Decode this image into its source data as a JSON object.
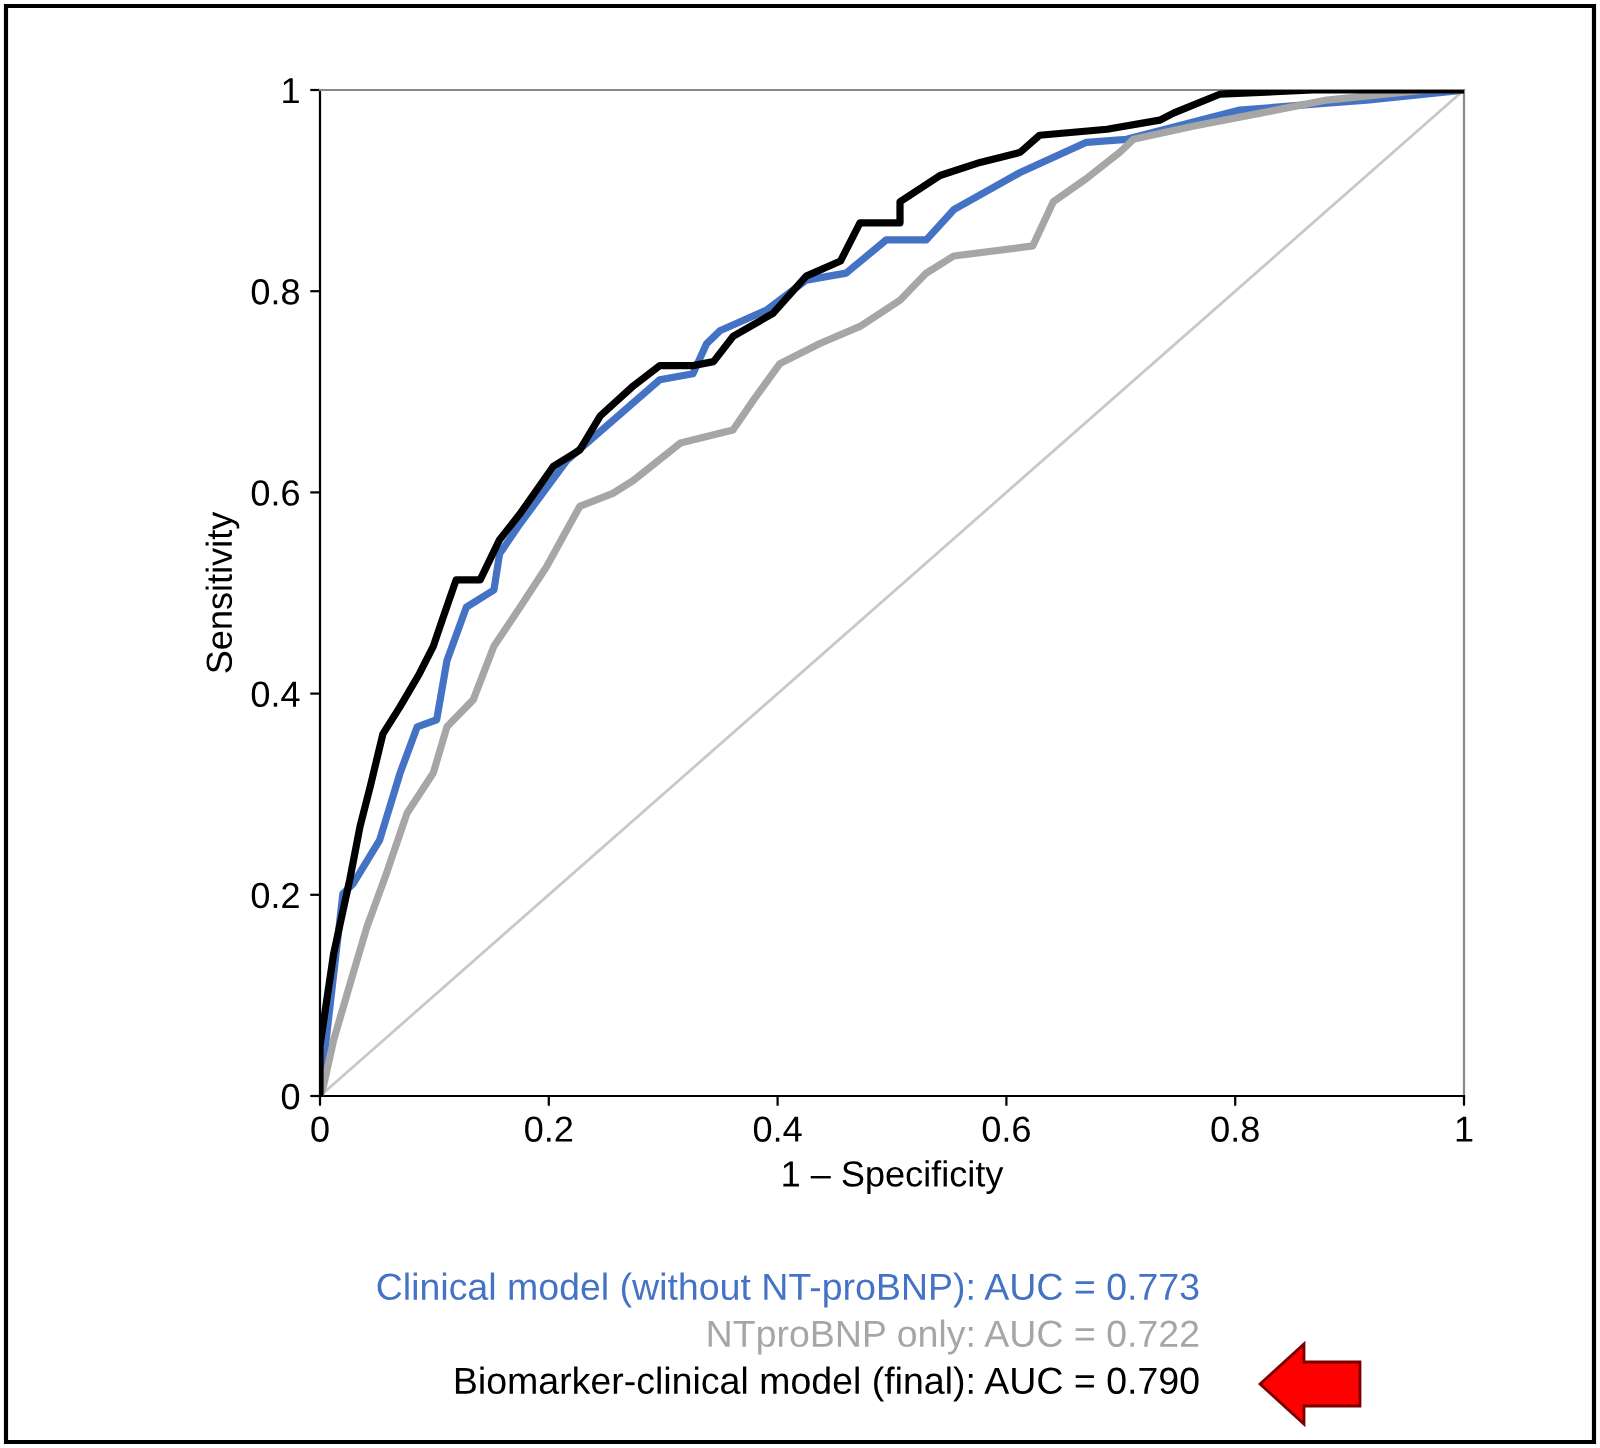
{
  "chart_data": {
    "type": "line",
    "xlabel": "1 – Specificity",
    "ylabel": "Sensitivity",
    "xlim": [
      0,
      1
    ],
    "ylim": [
      0,
      1
    ],
    "xticks": [
      0,
      0.2,
      0.4,
      0.6,
      0.8,
      1
    ],
    "yticks": [
      0,
      0.2,
      0.4,
      0.6,
      0.8,
      1
    ],
    "grid": false,
    "legend": "bottom",
    "marker": "none",
    "line_style": "solid",
    "series": [
      {
        "name": "Clinical model (without NT-proBNP): AUC = 0.773",
        "color": "#4472c4",
        "x": [
          0,
          0.006,
          0.02,
          0.029,
          0.052,
          0.07,
          0.085,
          0.102,
          0.111,
          0.128,
          0.152,
          0.157,
          0.175,
          0.216,
          0.297,
          0.326,
          0.338,
          0.35,
          0.39,
          0.425,
          0.46,
          0.495,
          0.53,
          0.554,
          0.612,
          0.67,
          0.705,
          0.804,
          0.88,
          0.915,
          1
        ],
        "values": [
          0,
          0.062,
          0.201,
          0.211,
          0.254,
          0.321,
          0.367,
          0.374,
          0.433,
          0.486,
          0.503,
          0.539,
          0.569,
          0.632,
          0.712,
          0.718,
          0.748,
          0.761,
          0.781,
          0.811,
          0.818,
          0.851,
          0.851,
          0.881,
          0.918,
          0.948,
          0.951,
          0.98,
          0.987,
          0.99,
          1
        ]
      },
      {
        "name": "NTproBNP only: AUC = 0.722",
        "color": "#a6a6a6",
        "x": [
          0,
          0.003,
          0.012,
          0.029,
          0.041,
          0.058,
          0.076,
          0.099,
          0.111,
          0.134,
          0.152,
          0.175,
          0.198,
          0.227,
          0.256,
          0.274,
          0.315,
          0.361,
          0.379,
          0.402,
          0.437,
          0.472,
          0.507,
          0.53,
          0.554,
          0.623,
          0.641,
          0.67,
          0.699,
          0.711,
          0.763,
          0.822,
          0.88,
          0.967,
          1
        ],
        "values": [
          0,
          0.01,
          0.056,
          0.122,
          0.168,
          0.221,
          0.281,
          0.321,
          0.367,
          0.394,
          0.447,
          0.486,
          0.526,
          0.586,
          0.599,
          0.612,
          0.649,
          0.662,
          0.692,
          0.728,
          0.748,
          0.765,
          0.791,
          0.818,
          0.835,
          0.845,
          0.889,
          0.912,
          0.938,
          0.951,
          0.964,
          0.977,
          0.99,
          1,
          1
        ]
      },
      {
        "name": "Biomarker-clinical model (final): AUC = 0.790",
        "color": "#000000",
        "x": [
          0,
          0,
          0.012,
          0.026,
          0.035,
          0.044,
          0.055,
          0.07,
          0.087,
          0.099,
          0.108,
          0.119,
          0.14,
          0.157,
          0.175,
          0.204,
          0.227,
          0.245,
          0.274,
          0.297,
          0.326,
          0.344,
          0.361,
          0.396,
          0.425,
          0.455,
          0.472,
          0.507,
          0.507,
          0.542,
          0.577,
          0.612,
          0.629,
          0.688,
          0.734,
          0.746,
          0.787,
          0.868,
          1
        ],
        "values": [
          0,
          0.05,
          0.142,
          0.215,
          0.268,
          0.308,
          0.36,
          0.387,
          0.42,
          0.447,
          0.477,
          0.513,
          0.513,
          0.553,
          0.579,
          0.626,
          0.642,
          0.676,
          0.706,
          0.726,
          0.726,
          0.73,
          0.755,
          0.778,
          0.815,
          0.83,
          0.868,
          0.868,
          0.889,
          0.915,
          0.928,
          0.938,
          0.955,
          0.961,
          0.97,
          0.977,
          0.996,
          1,
          1
        ]
      },
      {
        "type": "line",
        "color": "#c8c8c8",
        "x": [
          0,
          1
        ],
        "values": [
          0,
          1
        ]
      }
    ]
  }
}
